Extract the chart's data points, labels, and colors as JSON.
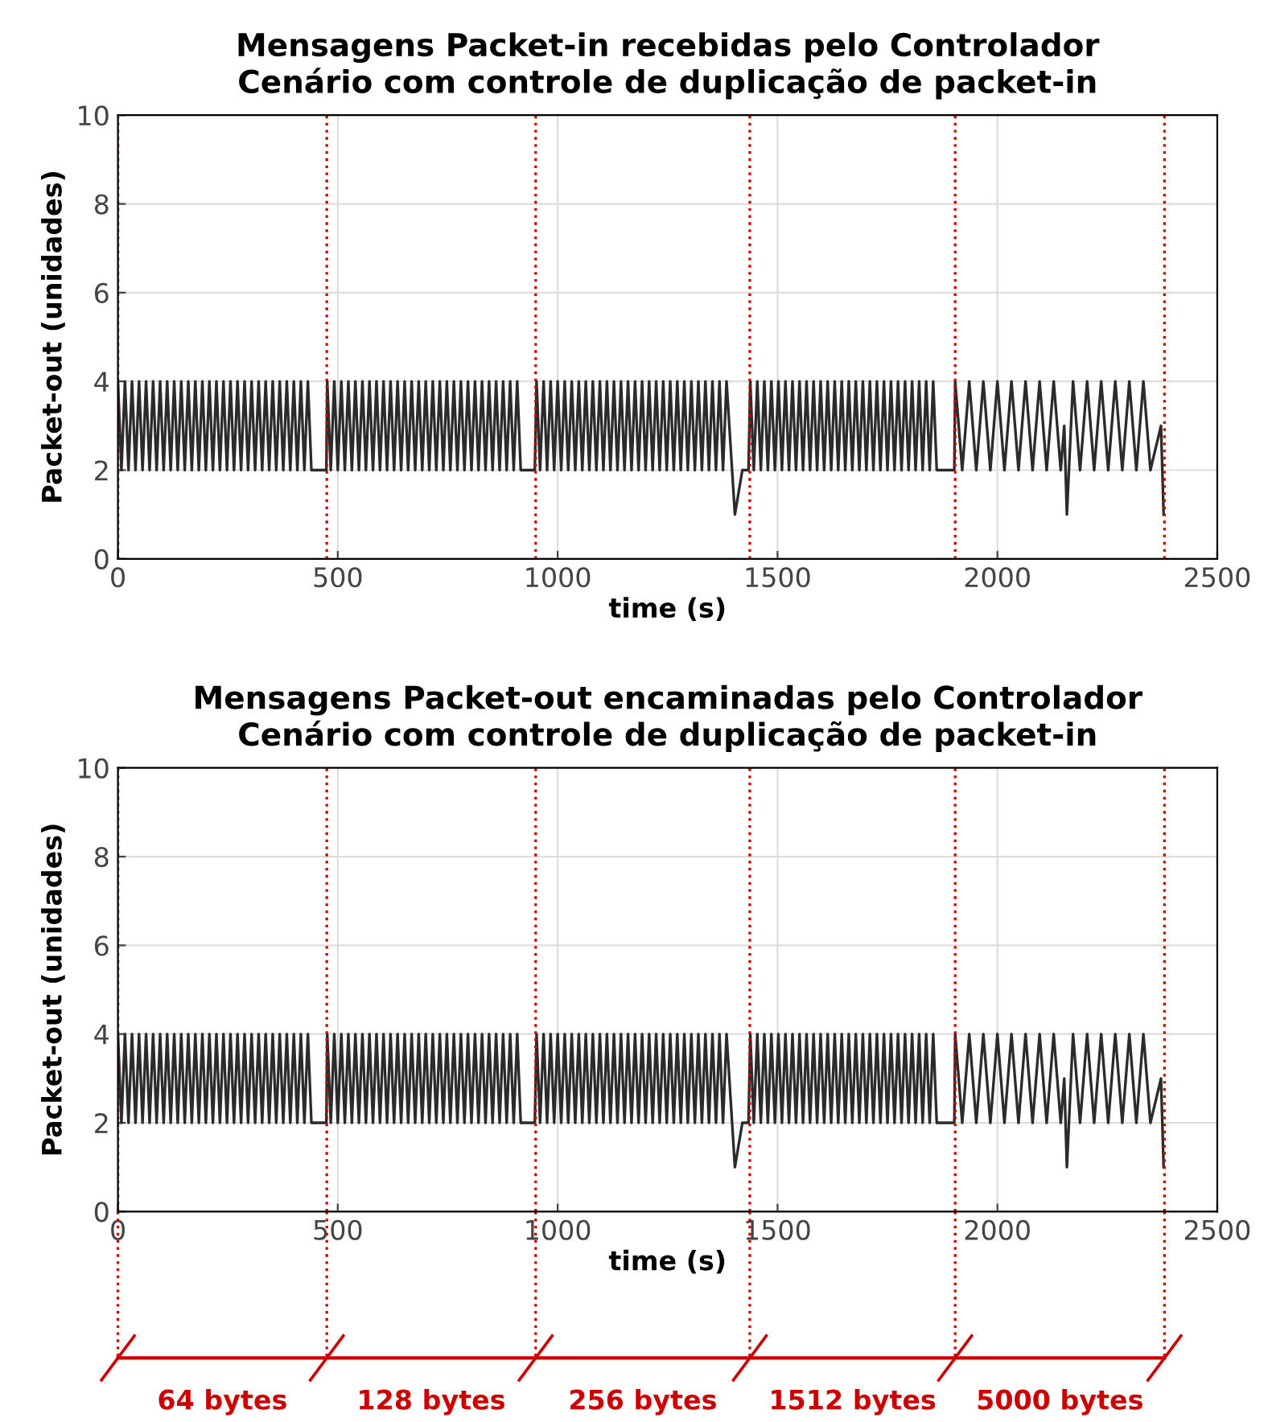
{
  "chart_data": [
    {
      "type": "line",
      "title": "Mensagens Packet-in recebidas pelo Controlador\nCenário com controle de duplicação de packet-in",
      "xlabel": "time (s)",
      "ylabel": "Packet-out (unidades)",
      "xlim": [
        0,
        2500
      ],
      "xticks": [
        0,
        500,
        1000,
        1500,
        2000,
        2500
      ],
      "ylim": [
        0,
        10
      ],
      "yticks": [
        0,
        2,
        4,
        6,
        8,
        10
      ],
      "grid": true,
      "line_style": "solid",
      "marker": "none",
      "series": [
        {
          "color": "#2b2b2b",
          "x": [
            0,
            8,
            16,
            24,
            32,
            40,
            48,
            56,
            64,
            72,
            80,
            88,
            96,
            104,
            112,
            120,
            128,
            136,
            144,
            152,
            160,
            168,
            176,
            184,
            192,
            200,
            208,
            216,
            224,
            232,
            240,
            248,
            256,
            264,
            272,
            280,
            288,
            296,
            304,
            312,
            320,
            328,
            336,
            344,
            352,
            360,
            368,
            376,
            384,
            392,
            400,
            408,
            416,
            424,
            432,
            440,
            474,
            476,
            484,
            492,
            500,
            508,
            516,
            524,
            532,
            540,
            548,
            556,
            564,
            572,
            580,
            588,
            596,
            604,
            612,
            620,
            628,
            636,
            644,
            652,
            660,
            668,
            676,
            684,
            692,
            700,
            708,
            716,
            724,
            732,
            740,
            748,
            756,
            764,
            772,
            780,
            788,
            796,
            804,
            812,
            820,
            828,
            836,
            844,
            852,
            860,
            868,
            876,
            884,
            892,
            900,
            908,
            916,
            948,
            952,
            960,
            968,
            976,
            984,
            992,
            1000,
            1008,
            1016,
            1024,
            1032,
            1040,
            1048,
            1056,
            1064,
            1072,
            1080,
            1088,
            1096,
            1104,
            1112,
            1120,
            1128,
            1136,
            1144,
            1152,
            1160,
            1168,
            1176,
            1184,
            1192,
            1200,
            1208,
            1216,
            1224,
            1232,
            1240,
            1248,
            1256,
            1264,
            1272,
            1280,
            1288,
            1296,
            1304,
            1312,
            1320,
            1328,
            1336,
            1344,
            1352,
            1360,
            1368,
            1376,
            1384,
            1403,
            1420,
            1434,
            1438,
            1446,
            1454,
            1462,
            1470,
            1478,
            1486,
            1494,
            1502,
            1510,
            1518,
            1526,
            1534,
            1542,
            1550,
            1558,
            1566,
            1574,
            1582,
            1590,
            1598,
            1606,
            1614,
            1622,
            1630,
            1638,
            1646,
            1654,
            1662,
            1670,
            1678,
            1686,
            1694,
            1702,
            1710,
            1718,
            1726,
            1734,
            1742,
            1750,
            1758,
            1766,
            1774,
            1782,
            1790,
            1798,
            1806,
            1814,
            1822,
            1830,
            1838,
            1846,
            1854,
            1862,
            1902,
            1904,
            1920,
            1936,
            1952,
            1968,
            1984,
            2000,
            2016,
            2032,
            2048,
            2064,
            2080,
            2096,
            2112,
            2128,
            2144,
            2152,
            2158,
            2172,
            2188,
            2204,
            2220,
            2236,
            2252,
            2268,
            2284,
            2300,
            2316,
            2332,
            2348,
            2372,
            2378
          ],
          "values": [
            4,
            2,
            4,
            2,
            4,
            2,
            4,
            2,
            4,
            2,
            4,
            2,
            4,
            2,
            4,
            2,
            4,
            2,
            4,
            2,
            4,
            2,
            4,
            2,
            4,
            2,
            4,
            2,
            4,
            2,
            4,
            2,
            4,
            2,
            4,
            2,
            4,
            2,
            4,
            2,
            4,
            2,
            4,
            2,
            4,
            2,
            4,
            2,
            4,
            2,
            4,
            2,
            4,
            2,
            4,
            2,
            2,
            4,
            2,
            4,
            2,
            4,
            2,
            4,
            2,
            4,
            2,
            4,
            2,
            4,
            2,
            4,
            2,
            4,
            2,
            4,
            2,
            4,
            2,
            4,
            2,
            4,
            2,
            4,
            2,
            4,
            2,
            4,
            2,
            4,
            2,
            4,
            2,
            4,
            2,
            4,
            2,
            4,
            2,
            4,
            2,
            4,
            2,
            4,
            2,
            4,
            2,
            4,
            2,
            4,
            2,
            4,
            2,
            2,
            4,
            2,
            4,
            2,
            4,
            2,
            4,
            2,
            4,
            2,
            4,
            2,
            4,
            2,
            4,
            2,
            4,
            2,
            4,
            2,
            4,
            2,
            4,
            2,
            4,
            2,
            4,
            2,
            4,
            2,
            4,
            2,
            4,
            2,
            4,
            2,
            4,
            2,
            4,
            2,
            4,
            2,
            4,
            2,
            4,
            2,
            4,
            2,
            4,
            2,
            4,
            2,
            4,
            2,
            4,
            1,
            2,
            2,
            4,
            2,
            4,
            2,
            4,
            2,
            4,
            2,
            4,
            2,
            4,
            2,
            4,
            2,
            4,
            2,
            4,
            2,
            4,
            2,
            4,
            2,
            4,
            2,
            4,
            2,
            4,
            2,
            4,
            2,
            4,
            2,
            4,
            2,
            4,
            2,
            4,
            2,
            4,
            2,
            4,
            2,
            4,
            2,
            4,
            2,
            4,
            2,
            4,
            2,
            4,
            2,
            4,
            2,
            2,
            4,
            2,
            4,
            2,
            4,
            2,
            4,
            2,
            4,
            2,
            4,
            2,
            4,
            2,
            4,
            2,
            3,
            1,
            4,
            2,
            4,
            2,
            4,
            2,
            4,
            2,
            4,
            2,
            4,
            2,
            3,
            1
          ]
        }
      ],
      "ref_lines": [
        {
          "axis": "x",
          "value": 0,
          "color": "#cc0000",
          "line_style": "dotted"
        },
        {
          "axis": "x",
          "value": 475,
          "color": "#cc0000",
          "line_style": "dotted"
        },
        {
          "axis": "x",
          "value": 950,
          "color": "#cc0000",
          "line_style": "dotted"
        },
        {
          "axis": "x",
          "value": 1437,
          "color": "#cc0000",
          "line_style": "dotted"
        },
        {
          "axis": "x",
          "value": 1904,
          "color": "#cc0000",
          "line_style": "dotted"
        },
        {
          "axis": "x",
          "value": 2380,
          "color": "#cc0000",
          "line_style": "dotted"
        }
      ]
    },
    {
      "type": "line",
      "title": "Mensagens Packet-out encaminadas pelo Controlador\nCenário com controle de duplicação de packet-in",
      "xlabel": "time (s)",
      "ylabel": "Packet-out (unidades)",
      "xlim": [
        0,
        2500
      ],
      "xticks": [
        0,
        500,
        1000,
        1500,
        2000,
        2500
      ],
      "ylim": [
        0,
        10
      ],
      "yticks": [
        0,
        2,
        4,
        6,
        8,
        10
      ],
      "grid": true,
      "line_style": "solid",
      "marker": "none",
      "series": [
        {
          "color": "#2b2b2b",
          "x": [
            0,
            8,
            16,
            24,
            32,
            40,
            48,
            56,
            64,
            72,
            80,
            88,
            96,
            104,
            112,
            120,
            128,
            136,
            144,
            152,
            160,
            168,
            176,
            184,
            192,
            200,
            208,
            216,
            224,
            232,
            240,
            248,
            256,
            264,
            272,
            280,
            288,
            296,
            304,
            312,
            320,
            328,
            336,
            344,
            352,
            360,
            368,
            376,
            384,
            392,
            400,
            408,
            416,
            424,
            432,
            440,
            474,
            476,
            484,
            492,
            500,
            508,
            516,
            524,
            532,
            540,
            548,
            556,
            564,
            572,
            580,
            588,
            596,
            604,
            612,
            620,
            628,
            636,
            644,
            652,
            660,
            668,
            676,
            684,
            692,
            700,
            708,
            716,
            724,
            732,
            740,
            748,
            756,
            764,
            772,
            780,
            788,
            796,
            804,
            812,
            820,
            828,
            836,
            844,
            852,
            860,
            868,
            876,
            884,
            892,
            900,
            908,
            916,
            948,
            952,
            960,
            968,
            976,
            984,
            992,
            1000,
            1008,
            1016,
            1024,
            1032,
            1040,
            1048,
            1056,
            1064,
            1072,
            1080,
            1088,
            1096,
            1104,
            1112,
            1120,
            1128,
            1136,
            1144,
            1152,
            1160,
            1168,
            1176,
            1184,
            1192,
            1200,
            1208,
            1216,
            1224,
            1232,
            1240,
            1248,
            1256,
            1264,
            1272,
            1280,
            1288,
            1296,
            1304,
            1312,
            1320,
            1328,
            1336,
            1344,
            1352,
            1360,
            1368,
            1376,
            1384,
            1403,
            1420,
            1434,
            1438,
            1446,
            1454,
            1462,
            1470,
            1478,
            1486,
            1494,
            1502,
            1510,
            1518,
            1526,
            1534,
            1542,
            1550,
            1558,
            1566,
            1574,
            1582,
            1590,
            1598,
            1606,
            1614,
            1622,
            1630,
            1638,
            1646,
            1654,
            1662,
            1670,
            1678,
            1686,
            1694,
            1702,
            1710,
            1718,
            1726,
            1734,
            1742,
            1750,
            1758,
            1766,
            1774,
            1782,
            1790,
            1798,
            1806,
            1814,
            1822,
            1830,
            1838,
            1846,
            1854,
            1862,
            1902,
            1904,
            1920,
            1936,
            1952,
            1968,
            1984,
            2000,
            2016,
            2032,
            2048,
            2064,
            2080,
            2096,
            2112,
            2128,
            2144,
            2152,
            2158,
            2172,
            2188,
            2204,
            2220,
            2236,
            2252,
            2268,
            2284,
            2300,
            2316,
            2332,
            2348,
            2372,
            2378
          ],
          "values": [
            4,
            2,
            4,
            2,
            4,
            2,
            4,
            2,
            4,
            2,
            4,
            2,
            4,
            2,
            4,
            2,
            4,
            2,
            4,
            2,
            4,
            2,
            4,
            2,
            4,
            2,
            4,
            2,
            4,
            2,
            4,
            2,
            4,
            2,
            4,
            2,
            4,
            2,
            4,
            2,
            4,
            2,
            4,
            2,
            4,
            2,
            4,
            2,
            4,
            2,
            4,
            2,
            4,
            2,
            4,
            2,
            2,
            4,
            2,
            4,
            2,
            4,
            2,
            4,
            2,
            4,
            2,
            4,
            2,
            4,
            2,
            4,
            2,
            4,
            2,
            4,
            2,
            4,
            2,
            4,
            2,
            4,
            2,
            4,
            2,
            4,
            2,
            4,
            2,
            4,
            2,
            4,
            2,
            4,
            2,
            4,
            2,
            4,
            2,
            4,
            2,
            4,
            2,
            4,
            2,
            4,
            2,
            4,
            2,
            4,
            2,
            4,
            2,
            2,
            4,
            2,
            4,
            2,
            4,
            2,
            4,
            2,
            4,
            2,
            4,
            2,
            4,
            2,
            4,
            2,
            4,
            2,
            4,
            2,
            4,
            2,
            4,
            2,
            4,
            2,
            4,
            2,
            4,
            2,
            4,
            2,
            4,
            2,
            4,
            2,
            4,
            2,
            4,
            2,
            4,
            2,
            4,
            2,
            4,
            2,
            4,
            2,
            4,
            2,
            4,
            2,
            4,
            2,
            4,
            1,
            2,
            2,
            4,
            2,
            4,
            2,
            4,
            2,
            4,
            2,
            4,
            2,
            4,
            2,
            4,
            2,
            4,
            2,
            4,
            2,
            4,
            2,
            4,
            2,
            4,
            2,
            4,
            2,
            4,
            2,
            4,
            2,
            4,
            2,
            4,
            2,
            4,
            2,
            4,
            2,
            4,
            2,
            4,
            2,
            4,
            2,
            4,
            2,
            4,
            2,
            4,
            2,
            4,
            2,
            4,
            2,
            2,
            4,
            2,
            4,
            2,
            4,
            2,
            4,
            2,
            4,
            2,
            4,
            2,
            4,
            2,
            4,
            2,
            3,
            1,
            4,
            2,
            4,
            2,
            4,
            2,
            4,
            2,
            4,
            2,
            4,
            2,
            3,
            1
          ]
        }
      ],
      "ref_lines": [
        {
          "axis": "x",
          "value": 0,
          "color": "#cc0000",
          "line_style": "dotted"
        },
        {
          "axis": "x",
          "value": 475,
          "color": "#cc0000",
          "line_style": "dotted"
        },
        {
          "axis": "x",
          "value": 950,
          "color": "#cc0000",
          "line_style": "dotted"
        },
        {
          "axis": "x",
          "value": 1437,
          "color": "#cc0000",
          "line_style": "dotted"
        },
        {
          "axis": "x",
          "value": 1904,
          "color": "#cc0000",
          "line_style": "dotted"
        },
        {
          "axis": "x",
          "value": 2380,
          "color": "#cc0000",
          "line_style": "dotted"
        }
      ],
      "annotations": [
        "64 bytes",
        "128 bytes",
        "256 bytes",
        "1512 bytes",
        "5000 bytes"
      ]
    }
  ]
}
